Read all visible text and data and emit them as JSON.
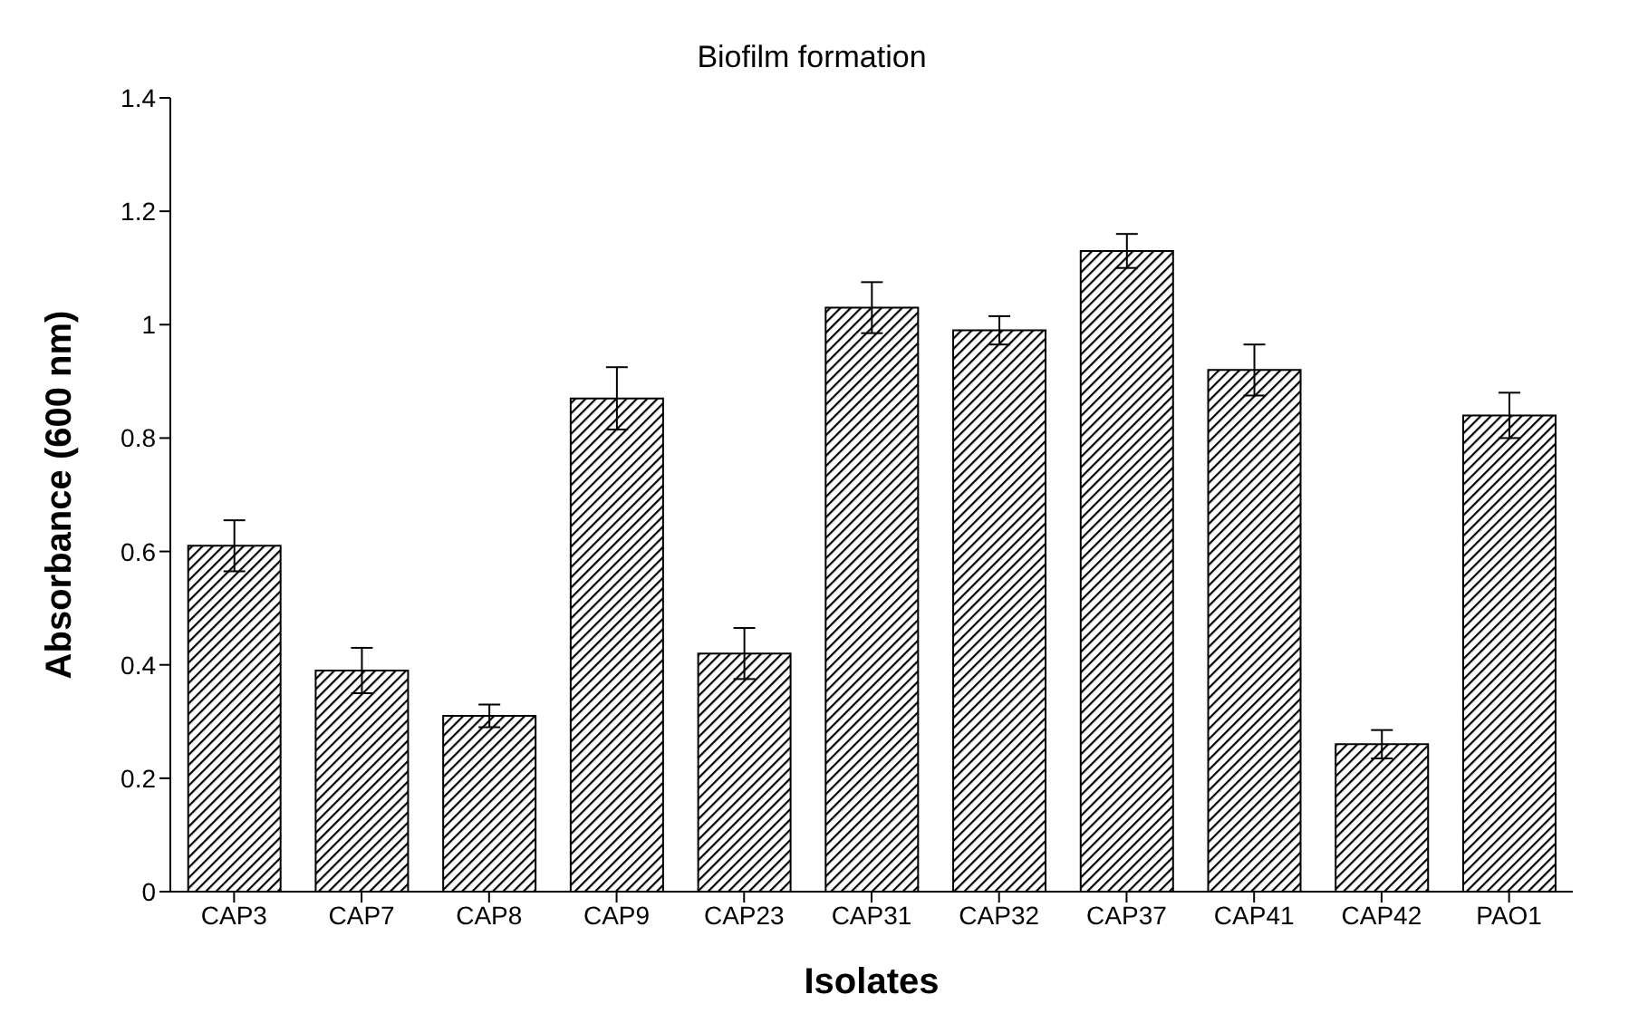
{
  "chart_data": {
    "type": "bar",
    "title": "Biofilm formation",
    "xlabel": "Isolates",
    "ylabel": "Absorbance (600 nm)",
    "categories": [
      "CAP3",
      "CAP7",
      "CAP8",
      "CAP9",
      "CAP23",
      "CAP31",
      "CAP32",
      "CAP37",
      "CAP41",
      "CAP42",
      "PAO1"
    ],
    "values": [
      0.61,
      0.39,
      0.31,
      0.87,
      0.42,
      1.03,
      0.99,
      1.13,
      0.92,
      0.26,
      0.84
    ],
    "errors": [
      0.045,
      0.04,
      0.02,
      0.055,
      0.045,
      0.045,
      0.025,
      0.03,
      0.045,
      0.025,
      0.04
    ],
    "color": "#000000",
    "ylim": [
      0,
      1.4
    ],
    "yticks": [
      0,
      0.2,
      0.4,
      0.6,
      0.8,
      1,
      1.2,
      1.4
    ],
    "grid": false,
    "legend": false
  }
}
